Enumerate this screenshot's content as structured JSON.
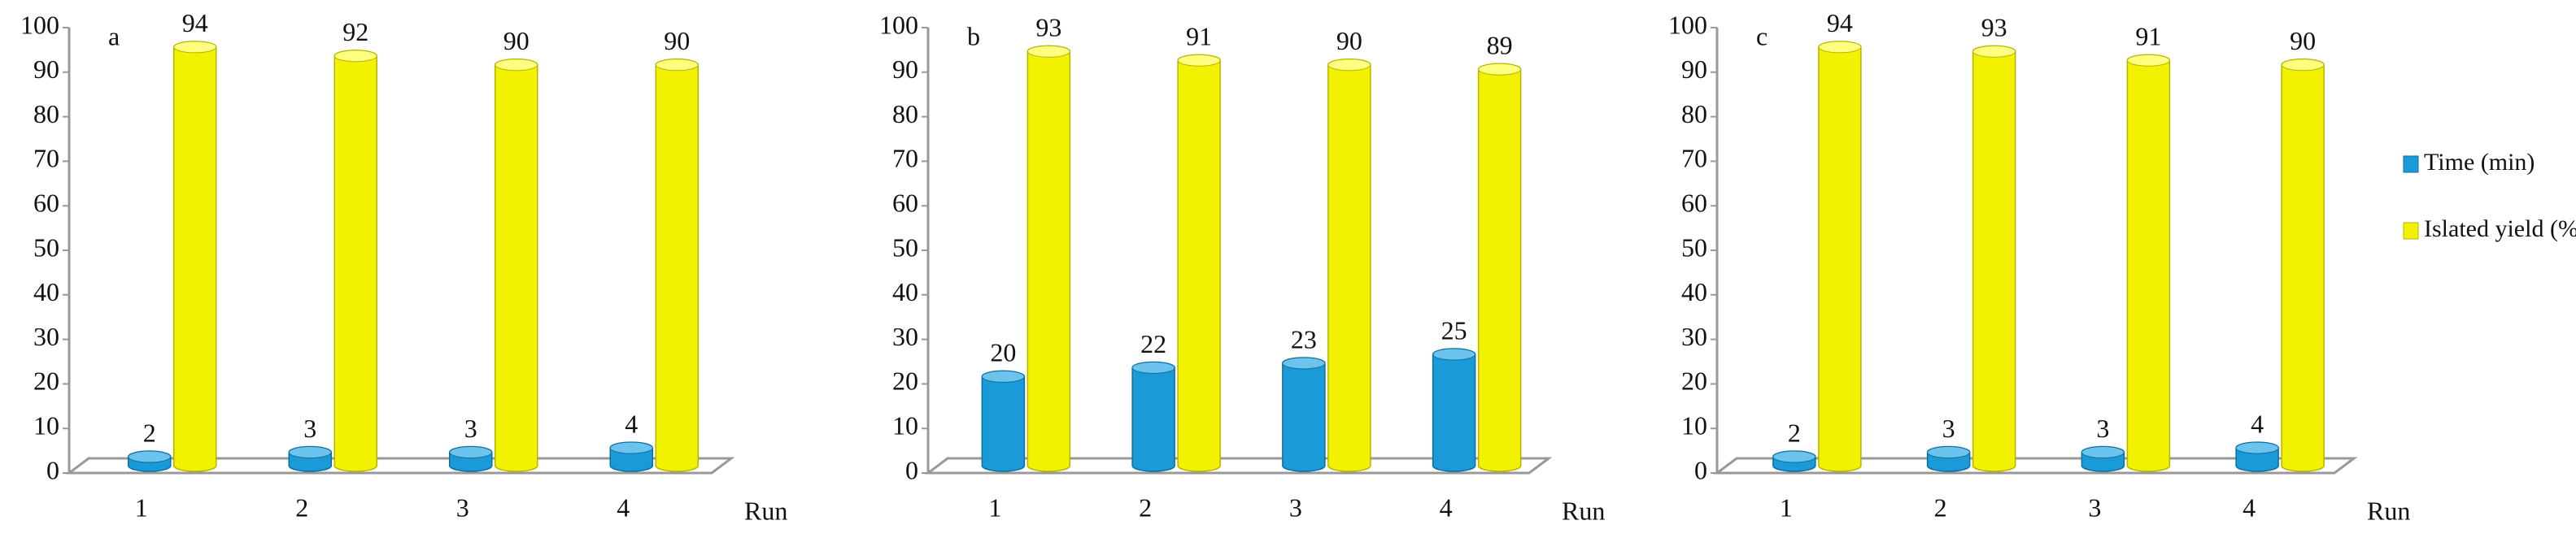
{
  "chart_data": [
    {
      "type": "bar",
      "label": "a",
      "x_label": "Run",
      "categories": [
        "1",
        "2",
        "3",
        "4"
      ],
      "series": [
        {
          "color": "#1a9ad6",
          "values": [
            2,
            3,
            3,
            4
          ]
        },
        {
          "color": "#f2f200",
          "values": [
            94,
            92,
            90,
            90
          ]
        }
      ],
      "ylim": [
        0,
        100
      ],
      "yticks": [
        0,
        10,
        20,
        30,
        40,
        50,
        60,
        70,
        80,
        90,
        100
      ]
    },
    {
      "type": "bar",
      "label": "b",
      "x_label": "Run",
      "categories": [
        "1",
        "2",
        "3",
        "4"
      ],
      "series": [
        {
          "color": "#1a9ad6",
          "values": [
            20,
            22,
            23,
            25
          ]
        },
        {
          "color": "#f2f200",
          "values": [
            93,
            91,
            90,
            89
          ]
        }
      ],
      "ylim": [
        0,
        100
      ],
      "yticks": [
        0,
        10,
        20,
        30,
        40,
        50,
        60,
        70,
        80,
        90,
        100
      ]
    },
    {
      "type": "bar",
      "label": "c",
      "x_label": "Run",
      "categories": [
        "1",
        "2",
        "3",
        "4"
      ],
      "series": [
        {
          "name": "Time (min)",
          "color": "#1a9ad6",
          "values": [
            2,
            3,
            3,
            4
          ]
        },
        {
          "name": "Islated yield (%)",
          "color": "#f2f200",
          "values": [
            94,
            93,
            91,
            90
          ]
        }
      ],
      "ylim": [
        0,
        100
      ],
      "yticks": [
        0,
        10,
        20,
        30,
        40,
        50,
        60,
        70,
        80,
        90,
        100
      ],
      "legend": "right"
    }
  ]
}
